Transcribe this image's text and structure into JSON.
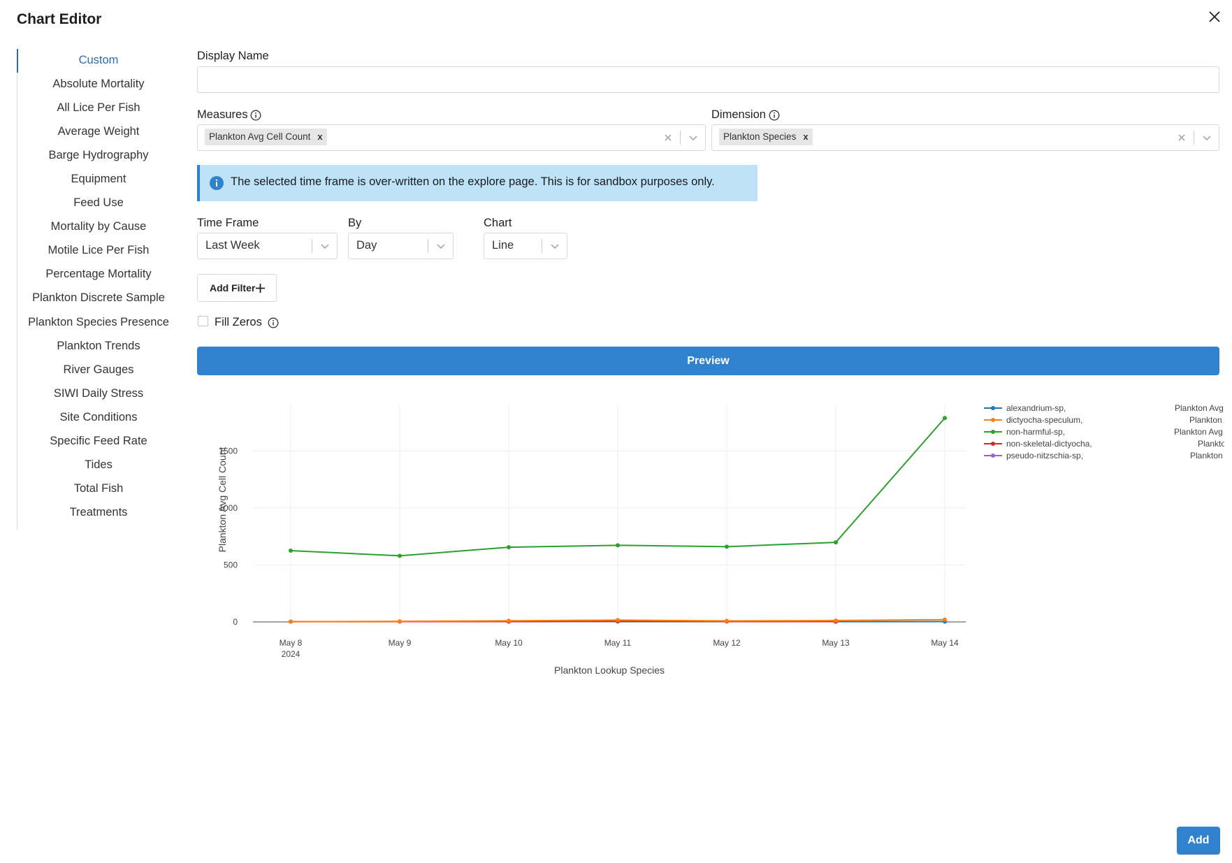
{
  "title": "Chart Editor",
  "nav": {
    "items": [
      "Custom",
      "Absolute Mortality",
      "All Lice Per Fish",
      "Average Weight",
      "Barge Hydrography",
      "Equipment",
      "Feed Use",
      "Mortality by Cause",
      "Motile Lice Per Fish",
      "Percentage Mortality",
      "Plankton Discrete Sample",
      "Plankton Species Presence",
      "Plankton Trends",
      "River Gauges",
      "SIWI Daily Stress",
      "Site Conditions",
      "Specific Feed Rate",
      "Tides",
      "Total Fish",
      "Treatments"
    ],
    "active": "Custom"
  },
  "form": {
    "display_name_label": "Display Name",
    "display_name_value": "",
    "measures_label": "Measures",
    "measures_tag": "Plankton Avg Cell Count",
    "dimension_label": "Dimension",
    "dimension_tag": "Plankton Species",
    "tag_remove": "x",
    "info_banner": "The selected time frame is over-written on the explore page. This is for sandbox purposes only.",
    "time_frame_label": "Time Frame",
    "time_frame_value": "Last Week",
    "by_label": "By",
    "by_value": "Day",
    "chart_label": "Chart",
    "chart_value": "Line",
    "add_filter_label": "Add Filter",
    "fill_zeros_label": "Fill Zeros",
    "fill_zeros_checked": false,
    "preview_label": "Preview",
    "add_label": "Add"
  },
  "chart_data": {
    "type": "line",
    "x": [
      "May 8",
      "May 9",
      "May 10",
      "May 11",
      "May 12",
      "May 13",
      "May 14"
    ],
    "x_year_label": "2024",
    "xlabel": "Plankton Lookup Species",
    "ylabel": "Plankton Avg Cell Count",
    "ylim": [
      0,
      1900
    ],
    "yticks": [
      0,
      500,
      1000,
      1500
    ],
    "grid": true,
    "legend_position": "top-right",
    "series": [
      {
        "name": "alexandrium-sp,",
        "measure": "Plankton Avg Cell Count",
        "color": "#1f77b4",
        "values": [
          null,
          null,
          null,
          null,
          null,
          2,
          3
        ]
      },
      {
        "name": "dictyocha-speculum,",
        "measure": "Plankton Avg Cell Count",
        "color": "#ff7f0e",
        "values": [
          2,
          5,
          10,
          16,
          9,
          12,
          20
        ]
      },
      {
        "name": "non-harmful-sp,",
        "measure": "Plankton Avg Cell Count",
        "color": "#2ca02c",
        "values": [
          625,
          580,
          655,
          672,
          660,
          698,
          1788
        ]
      },
      {
        "name": "non-skeletal-dictyocha,",
        "measure": "Plankton Avg Cell Count",
        "color": "#d62728",
        "values": [
          2,
          3,
          4,
          6,
          4,
          3,
          null
        ]
      },
      {
        "name": "pseudo-nitzschia-sp,",
        "measure": "Plankton Avg Cell Count",
        "color": "#9467bd",
        "values": [
          null,
          null,
          2,
          4,
          null,
          null,
          null
        ]
      }
    ]
  }
}
